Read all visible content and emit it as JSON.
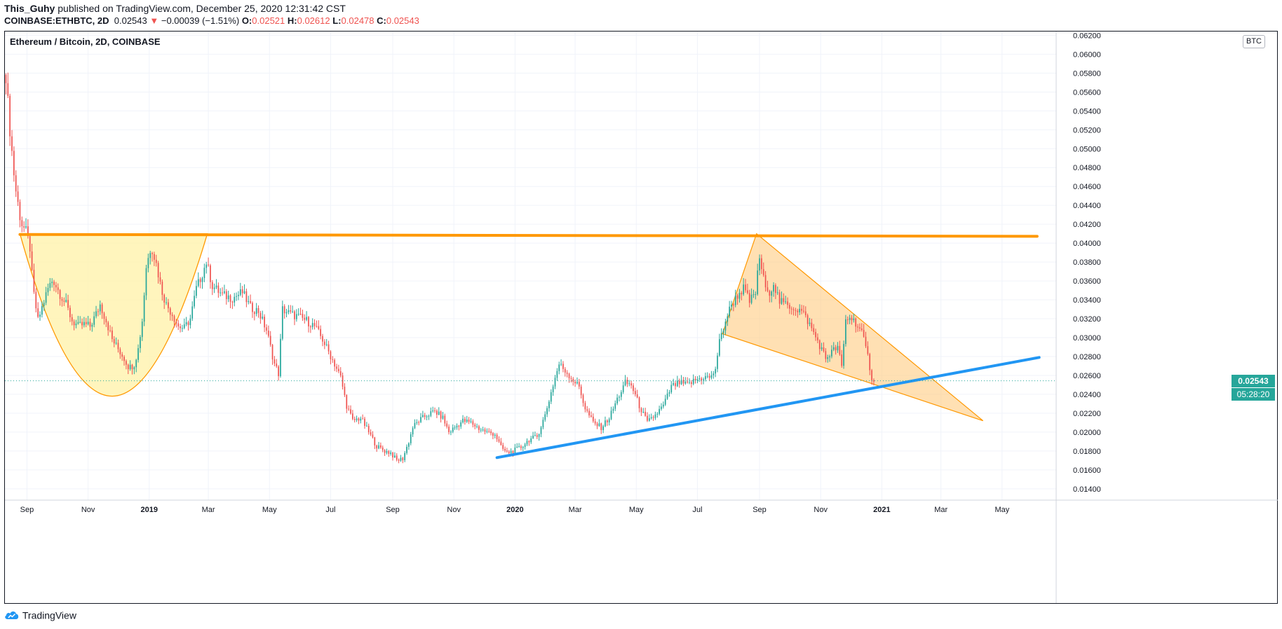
{
  "header": {
    "publisher": "This_Guhy",
    "published_text": "published on TradingView.com, December 25, 2020 12:31:42 CST",
    "symbol": "COINBASE:ETHBTC, 2D",
    "last": "0.02543",
    "change_arrow": "▼",
    "change": "−0.00039 (−1.51%)",
    "o_label": "O:",
    "o": "0.02521",
    "h_label": "H:",
    "h": "0.02612",
    "l_label": "L:",
    "l": "0.02478",
    "c_label": "C:",
    "c": "0.02543"
  },
  "footer": {
    "brand": "TradingView",
    "logo_icon": "tradingview-cloud-icon"
  },
  "colors": {
    "up": "#26a69a",
    "down": "#ef5350",
    "resistance": "#ff9800",
    "support": "#2196f3",
    "pattern_fill": "#fff2ad",
    "wedge_fill": "#ffcc80",
    "grid": "#f0f3fa"
  },
  "chart_data": {
    "type": "candlestick",
    "title": "Ethereum / Bitcoin, 2D, COINBASE",
    "y_unit": "BTC",
    "y_scale": "linear",
    "ylim": [
      0.0128,
      0.0624
    ],
    "xlim": [
      "2018-08-10",
      "2021-06-24"
    ],
    "grid": true,
    "y_ticks": [
      "0.06200",
      "0.06000",
      "0.05800",
      "0.05600",
      "0.05400",
      "0.05200",
      "0.05000",
      "0.04800",
      "0.04600",
      "0.04400",
      "0.04200",
      "0.04000",
      "0.03800",
      "0.03600",
      "0.03400",
      "0.03200",
      "0.03000",
      "0.02800",
      "0.02600",
      "0.02400",
      "0.02200",
      "0.02000",
      "0.01800",
      "0.01600",
      "0.01400"
    ],
    "x_ticks": [
      {
        "date": "2018-09-01",
        "label": "Sep",
        "bold": false
      },
      {
        "date": "2018-11-01",
        "label": "Nov",
        "bold": false
      },
      {
        "date": "2019-01-01",
        "label": "2019",
        "bold": true
      },
      {
        "date": "2019-03-01",
        "label": "Mar",
        "bold": false
      },
      {
        "date": "2019-05-01",
        "label": "May",
        "bold": false
      },
      {
        "date": "2019-07-01",
        "label": "Jul",
        "bold": false
      },
      {
        "date": "2019-09-01",
        "label": "Sep",
        "bold": false
      },
      {
        "date": "2019-11-01",
        "label": "Nov",
        "bold": false
      },
      {
        "date": "2020-01-01",
        "label": "2020",
        "bold": true
      },
      {
        "date": "2020-03-01",
        "label": "Mar",
        "bold": false
      },
      {
        "date": "2020-05-01",
        "label": "May",
        "bold": false
      },
      {
        "date": "2020-07-01",
        "label": "Jul",
        "bold": false
      },
      {
        "date": "2020-09-01",
        "label": "Sep",
        "bold": false
      },
      {
        "date": "2020-11-01",
        "label": "Nov",
        "bold": false
      },
      {
        "date": "2021-01-01",
        "label": "2021",
        "bold": true
      },
      {
        "date": "2021-03-01",
        "label": "Mar",
        "bold": false
      },
      {
        "date": "2021-05-01",
        "label": "May",
        "bold": false
      }
    ],
    "close_path": [
      [
        "2018-08-11",
        0.0578
      ],
      [
        "2018-08-15",
        0.052
      ],
      [
        "2018-08-20",
        0.0462
      ],
      [
        "2018-08-26",
        0.0422
      ],
      [
        "2018-08-31",
        0.0412
      ],
      [
        "2018-09-04",
        0.0395
      ],
      [
        "2018-09-07",
        0.0352
      ],
      [
        "2018-09-12",
        0.0318
      ],
      [
        "2018-09-16",
        0.0332
      ],
      [
        "2018-09-22",
        0.0352
      ],
      [
        "2018-09-27",
        0.0362
      ],
      [
        "2018-10-03",
        0.0348
      ],
      [
        "2018-10-10",
        0.0335
      ],
      [
        "2018-10-16",
        0.0318
      ],
      [
        "2018-10-22",
        0.0312
      ],
      [
        "2018-10-28",
        0.0314
      ],
      [
        "2018-11-03",
        0.0312
      ],
      [
        "2018-11-09",
        0.0325
      ],
      [
        "2018-11-13",
        0.0335
      ],
      [
        "2018-11-19",
        0.0318
      ],
      [
        "2018-11-25",
        0.0298
      ],
      [
        "2018-12-01",
        0.0288
      ],
      [
        "2018-12-07",
        0.0278
      ],
      [
        "2018-12-12",
        0.0268
      ],
      [
        "2018-12-17",
        0.0272
      ],
      [
        "2018-12-21",
        0.0288
      ],
      [
        "2018-12-25",
        0.0318
      ],
      [
        "2018-12-29",
        0.0375
      ],
      [
        "2019-01-03",
        0.0398
      ],
      [
        "2019-01-08",
        0.0378
      ],
      [
        "2019-01-13",
        0.0352
      ],
      [
        "2019-01-18",
        0.0335
      ],
      [
        "2019-01-24",
        0.0325
      ],
      [
        "2019-01-30",
        0.0312
      ],
      [
        "2019-02-05",
        0.031
      ],
      [
        "2019-02-11",
        0.032
      ],
      [
        "2019-02-17",
        0.0352
      ],
      [
        "2019-02-23",
        0.0368
      ],
      [
        "2019-02-27",
        0.038
      ],
      [
        "2019-03-05",
        0.0355
      ],
      [
        "2019-03-15",
        0.0345
      ],
      [
        "2019-03-25",
        0.0342
      ],
      [
        "2019-04-04",
        0.0348
      ],
      [
        "2019-04-12",
        0.0332
      ],
      [
        "2019-04-20",
        0.0328
      ],
      [
        "2019-04-28",
        0.0308
      ],
      [
        "2019-05-06",
        0.0272
      ],
      [
        "2019-05-10",
        0.0262
      ],
      [
        "2019-05-14",
        0.033
      ],
      [
        "2019-05-22",
        0.0325
      ],
      [
        "2019-05-30",
        0.0322
      ],
      [
        "2019-06-07",
        0.0318
      ],
      [
        "2019-06-15",
        0.0312
      ],
      [
        "2019-06-23",
        0.0298
      ],
      [
        "2019-06-29",
        0.0285
      ],
      [
        "2019-07-05",
        0.0272
      ],
      [
        "2019-07-11",
        0.0258
      ],
      [
        "2019-07-17",
        0.0228
      ],
      [
        "2019-07-23",
        0.0212
      ],
      [
        "2019-07-31",
        0.0215
      ],
      [
        "2019-08-08",
        0.02
      ],
      [
        "2019-08-16",
        0.0185
      ],
      [
        "2019-08-24",
        0.018
      ],
      [
        "2019-08-30",
        0.0178
      ],
      [
        "2019-09-05",
        0.017
      ],
      [
        "2019-09-11",
        0.0172
      ],
      [
        "2019-09-17",
        0.019
      ],
      [
        "2019-09-21",
        0.0205
      ],
      [
        "2019-09-27",
        0.0212
      ],
      [
        "2019-10-05",
        0.0218
      ],
      [
        "2019-10-13",
        0.0222
      ],
      [
        "2019-10-21",
        0.0215
      ],
      [
        "2019-10-27",
        0.02
      ],
      [
        "2019-11-02",
        0.0205
      ],
      [
        "2019-11-10",
        0.0212
      ],
      [
        "2019-11-18",
        0.021
      ],
      [
        "2019-11-26",
        0.0204
      ],
      [
        "2019-12-04",
        0.02
      ],
      [
        "2019-12-12",
        0.0198
      ],
      [
        "2019-12-18",
        0.0184
      ],
      [
        "2019-12-24",
        0.0178
      ],
      [
        "2019-12-30",
        0.018
      ],
      [
        "2020-01-07",
        0.0184
      ],
      [
        "2020-01-15",
        0.0192
      ],
      [
        "2020-01-23",
        0.0195
      ],
      [
        "2020-01-31",
        0.0218
      ],
      [
        "2020-02-08",
        0.025
      ],
      [
        "2020-02-14",
        0.0272
      ],
      [
        "2020-02-20",
        0.0265
      ],
      [
        "2020-02-28",
        0.0255
      ],
      [
        "2020-03-05",
        0.0248
      ],
      [
        "2020-03-11",
        0.0225
      ],
      [
        "2020-03-19",
        0.021
      ],
      [
        "2020-03-27",
        0.0205
      ],
      [
        "2020-04-04",
        0.0215
      ],
      [
        "2020-04-12",
        0.0235
      ],
      [
        "2020-04-20",
        0.0252
      ],
      [
        "2020-04-26",
        0.025
      ],
      [
        "2020-05-04",
        0.0228
      ],
      [
        "2020-05-12",
        0.021
      ],
      [
        "2020-05-20",
        0.0218
      ],
      [
        "2020-05-28",
        0.0228
      ],
      [
        "2020-06-05",
        0.0248
      ],
      [
        "2020-06-13",
        0.0252
      ],
      [
        "2020-06-21",
        0.025
      ],
      [
        "2020-06-29",
        0.0255
      ],
      [
        "2020-07-07",
        0.0258
      ],
      [
        "2020-07-15",
        0.0258
      ],
      [
        "2020-07-19",
        0.0268
      ],
      [
        "2020-07-23",
        0.0295
      ],
      [
        "2020-07-29",
        0.0318
      ],
      [
        "2020-08-04",
        0.0335
      ],
      [
        "2020-08-10",
        0.0345
      ],
      [
        "2020-08-16",
        0.0352
      ],
      [
        "2020-08-22",
        0.0338
      ],
      [
        "2020-08-28",
        0.0348
      ],
      [
        "2020-09-01",
        0.0385
      ],
      [
        "2020-09-05",
        0.0362
      ],
      [
        "2020-09-09",
        0.0345
      ],
      [
        "2020-09-15",
        0.0358
      ],
      [
        "2020-09-21",
        0.0338
      ],
      [
        "2020-09-27",
        0.0335
      ],
      [
        "2020-10-05",
        0.0332
      ],
      [
        "2020-10-13",
        0.0328
      ],
      [
        "2020-10-19",
        0.0318
      ],
      [
        "2020-10-25",
        0.0305
      ],
      [
        "2020-10-31",
        0.0292
      ],
      [
        "2020-11-06",
        0.0278
      ],
      [
        "2020-11-12",
        0.0285
      ],
      [
        "2020-11-18",
        0.029
      ],
      [
        "2020-11-22",
        0.0268
      ],
      [
        "2020-11-26",
        0.0318
      ],
      [
        "2020-11-30",
        0.0322
      ],
      [
        "2020-12-06",
        0.0316
      ],
      [
        "2020-12-12",
        0.0305
      ],
      [
        "2020-12-18",
        0.028
      ],
      [
        "2020-12-22",
        0.0258
      ],
      [
        "2020-12-25",
        0.02543
      ]
    ],
    "current_price": {
      "value": 0.02543,
      "label": "0.02543",
      "countdown": "05:28:20"
    },
    "drawings": [
      {
        "kind": "horizontal-trendline",
        "name": "resistance",
        "points": [
          [
            "2018-08-25",
            0.04092
          ],
          [
            "2021-06-05",
            0.04072
          ]
        ]
      },
      {
        "kind": "trendline",
        "name": "ascending-support",
        "points": [
          [
            "2019-12-14",
            0.0173
          ],
          [
            "2021-06-07",
            0.0279
          ]
        ]
      },
      {
        "kind": "arc-fill",
        "name": "cup-pattern",
        "points": [
          [
            "2018-08-25",
            0.041
          ],
          [
            "2018-11-25",
            0.0238
          ],
          [
            "2019-02-28",
            0.041
          ]
        ]
      },
      {
        "kind": "triangle-fill",
        "name": "falling-wedge",
        "points": [
          [
            "2020-08-29",
            0.041
          ],
          [
            "2020-07-26",
            0.0304
          ],
          [
            "2021-04-12",
            0.0212
          ]
        ]
      }
    ]
  }
}
